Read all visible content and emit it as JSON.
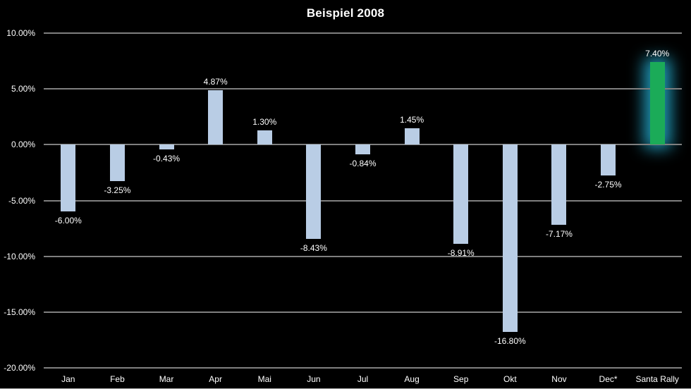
{
  "chart_data": {
    "type": "bar",
    "title": "Beispiel 2008",
    "categories": [
      "Jan",
      "Feb",
      "Mar",
      "Apr",
      "Mai",
      "Jun",
      "Jul",
      "Aug",
      "Sep",
      "Okt",
      "Nov",
      "Dec*",
      "Santa Rally"
    ],
    "values": [
      -6.0,
      -3.25,
      -0.43,
      4.87,
      1.3,
      -8.43,
      -0.84,
      1.45,
      -8.91,
      -16.8,
      -7.17,
      -2.75,
      7.4
    ],
    "value_labels": [
      "-6.00%",
      "-3.25%",
      "-0.43%",
      "4.87%",
      "1.30%",
      "-8.43%",
      "-0.84%",
      "1.45%",
      "-8.91%",
      "-16.80%",
      "-7.17%",
      "-2.75%",
      "7.40%"
    ],
    "yticks": [
      {
        "value": 10,
        "label": "10.00%"
      },
      {
        "value": 5,
        "label": "5.00%"
      },
      {
        "value": 0,
        "label": "0.00%"
      },
      {
        "value": -5,
        "label": "-5.00%"
      },
      {
        "value": -10,
        "label": "-10.00%"
      },
      {
        "value": -15,
        "label": "-15.00%"
      },
      {
        "value": -20,
        "label": "-20.00%"
      }
    ],
    "ylim": [
      -20,
      10
    ],
    "xlabel": "",
    "ylabel": "",
    "grid": true,
    "legend": "none",
    "highlight_index": 12,
    "colors": {
      "bar": "#b9cde5",
      "highlight_bar": "#1bab58",
      "highlight_glow": "rgba(40, 195, 235, 0.75)",
      "gridline": "#7f7f7f",
      "background": "#000000",
      "text": "#ffffff"
    }
  }
}
